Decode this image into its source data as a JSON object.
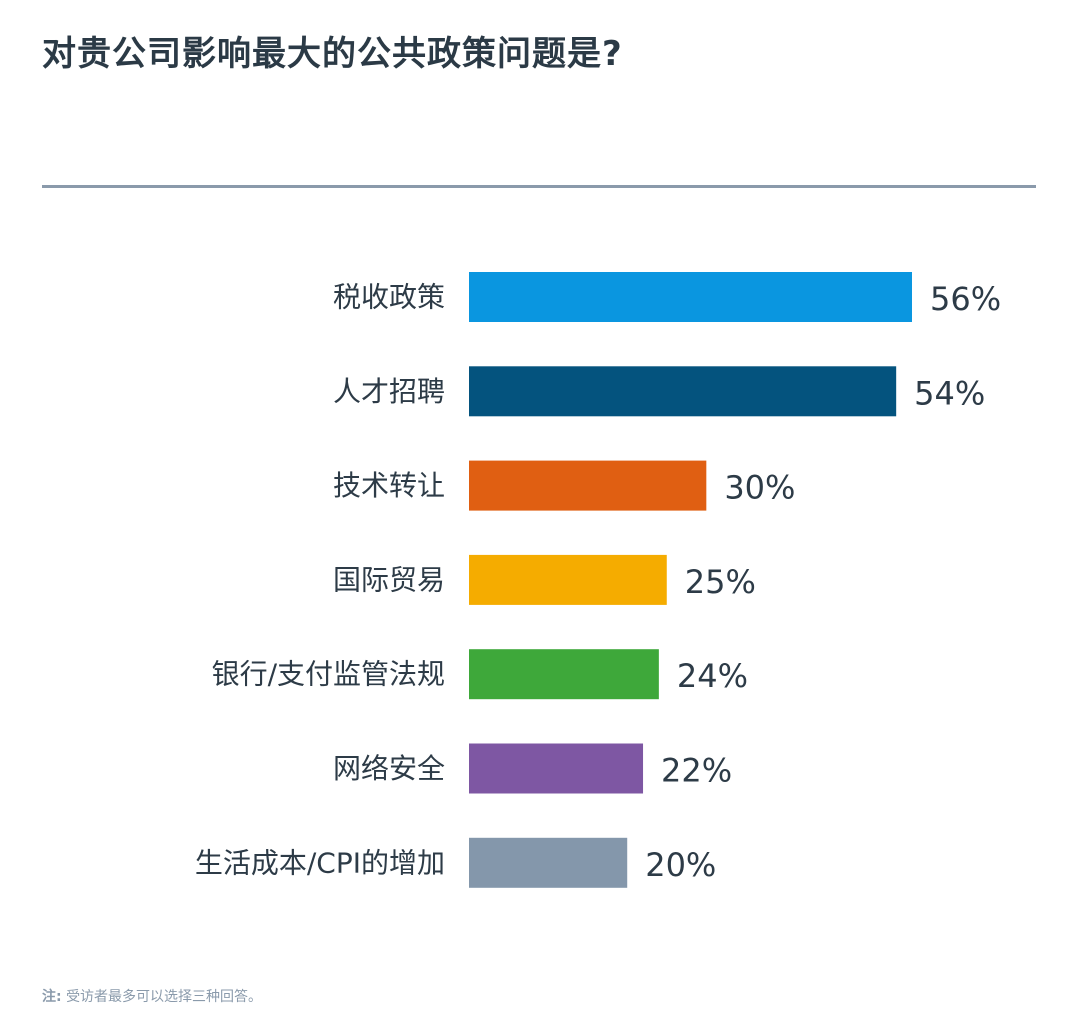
{
  "chart_data": {
    "type": "bar",
    "orientation": "horizontal",
    "title": "对贵公司影响最大的公共政策问题是?",
    "categories": [
      "税收政策",
      "人才招聘",
      "技术转让",
      "国际贸易",
      "银行/支付监管法规",
      "网络安全",
      "生活成本/CPI的增加"
    ],
    "values": [
      56,
      54,
      30,
      25,
      24,
      22,
      20
    ],
    "value_labels": [
      "56%",
      "54%",
      "30%",
      "25%",
      "24%",
      "22%",
      "20%"
    ],
    "unit": "%",
    "colors": [
      "#0a96e0",
      "#04537e",
      "#e05f12",
      "#f5ac00",
      "#3ea83a",
      "#7e57a3",
      "#8497ab"
    ],
    "xlim": [
      0,
      56
    ],
    "grid": false,
    "legend": "none"
  },
  "footnote": {
    "prefix": "注:",
    "text": "受访者最多可以选择三种回答。"
  }
}
